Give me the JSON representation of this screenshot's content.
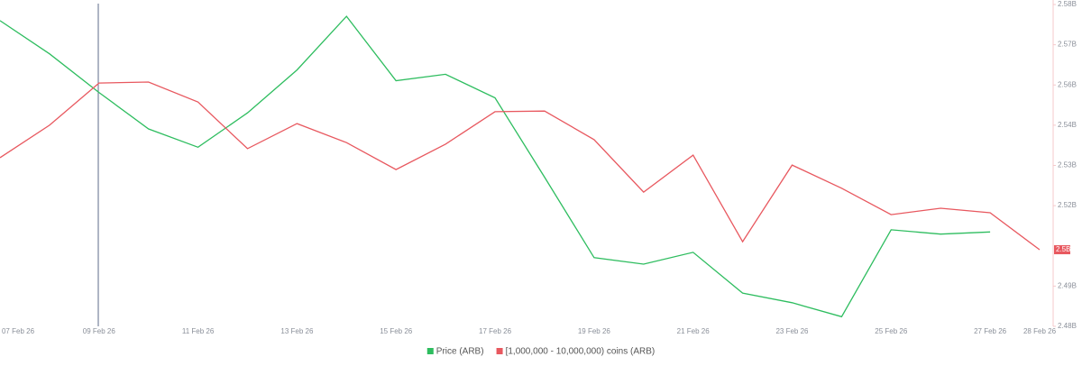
{
  "chart_data": {
    "type": "line",
    "categories": [
      "07 Feb 26",
      null,
      "09 Feb 26",
      null,
      "11 Feb 26",
      null,
      "13 Feb 26",
      null,
      "15 Feb 26",
      null,
      "17 Feb 26",
      null,
      "19 Feb 26",
      null,
      "21 Feb 26",
      null,
      "23 Feb 26",
      null,
      "25 Feb 26",
      null,
      "27 Feb 26",
      "28 Feb 26"
    ],
    "series": [
      {
        "name": "Price (ARB)",
        "color": "#2ebd5f",
        "axis": "y2",
        "values": [
          0.1285,
          0.1254,
          0.1218,
          0.1184,
          0.1167,
          0.1199,
          0.1239,
          0.1289,
          0.1229,
          0.1235,
          0.1213,
          0.1139,
          0.1064,
          0.1058,
          0.1069,
          0.1031,
          0.1022,
          0.1009,
          0.109,
          0.1086,
          0.1088,
          null
        ]
      },
      {
        "name": "[1,000,000 - 10,000,000) coins (ARB)",
        "color": "#e8585f",
        "values": [
          2532400000,
          2542500000,
          2555600000,
          2555900000,
          2549700000,
          2535200000,
          2543000000,
          2537100000,
          2528700000,
          2536600000,
          2546700000,
          2546900000,
          2538000000,
          2521700000,
          2533200000,
          2506300000,
          2530100000,
          2522900000,
          2514700000,
          2516700000,
          2515300000,
          2503800000
        ],
        "value_labels": [
          null,
          null,
          null,
          null,
          null,
          null,
          null,
          null,
          null,
          null,
          null,
          null,
          null,
          null,
          null,
          null,
          null,
          null,
          null,
          null,
          null,
          "2.5B"
        ]
      }
    ],
    "ylim": [
      2480000000,
      2580000000
    ],
    "yticks": [
      {
        "value": 2480000000,
        "label": "2.48B"
      },
      {
        "value": 2492500000,
        "label": "2.49B"
      },
      {
        "value": 2517500000,
        "label": "2.52B"
      },
      {
        "value": 2530000000,
        "label": "2.53B"
      },
      {
        "value": 2542500000,
        "label": "2.54B"
      },
      {
        "value": 2555000000,
        "label": "2.56B"
      },
      {
        "value": 2567500000,
        "label": "2.57B"
      },
      {
        "value": 2580000000,
        "label": "2.58B"
      }
    ],
    "y2lim": [
      0.1,
      0.13
    ],
    "grid": false
  }
}
